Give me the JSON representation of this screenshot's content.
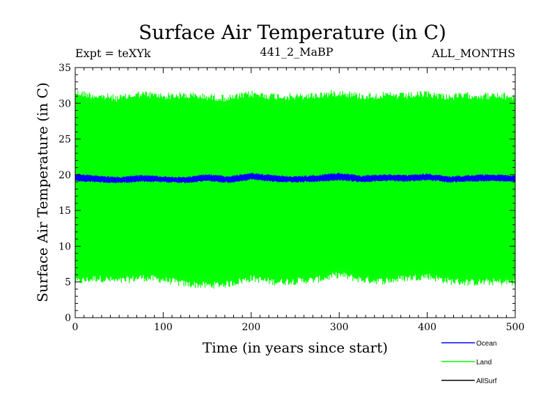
{
  "chart_data": {
    "type": "line",
    "title": "Surface Air Temperature (in C)",
    "subtitle_left": "Expt = teXYk",
    "subtitle_center": "441_2_MaBP",
    "subtitle_right": "ALL_MONTHS",
    "xlabel": "Time (in years since start)",
    "ylabel": "Surface Air Temperature (in C)",
    "xlim": [
      0,
      500
    ],
    "ylim": [
      0,
      35
    ],
    "x_ticks": [
      0,
      100,
      200,
      300,
      400,
      500
    ],
    "y_ticks": [
      0,
      5,
      10,
      15,
      20,
      25,
      30,
      35
    ],
    "legend_position": "bottom-right",
    "grid": false,
    "series": [
      {
        "name": "Ocean",
        "color": "#0000ff",
        "description": "seasonal cycle around 19.5 C",
        "x": [
          0,
          25,
          50,
          75,
          100,
          125,
          150,
          175,
          200,
          225,
          250,
          275,
          300,
          325,
          350,
          375,
          400,
          425,
          450,
          475,
          500
        ],
        "seasonal_max": [
          20.2,
          19.9,
          19.7,
          20.0,
          19.8,
          19.7,
          20.1,
          19.8,
          20.3,
          20.0,
          19.8,
          20.0,
          20.3,
          19.9,
          20.1,
          20.0,
          20.2,
          19.8,
          20.0,
          20.1,
          19.9
        ],
        "seasonal_min": [
          19.1,
          18.9,
          18.8,
          19.0,
          18.9,
          18.8,
          19.1,
          18.8,
          19.3,
          19.0,
          18.9,
          19.0,
          19.2,
          18.9,
          19.1,
          19.0,
          19.2,
          18.9,
          19.0,
          19.1,
          18.9
        ]
      },
      {
        "name": "Land",
        "color": "#00ff00",
        "description": "seasonal cycle envelope",
        "x": [
          0,
          25,
          50,
          75,
          100,
          125,
          150,
          175,
          200,
          225,
          250,
          275,
          300,
          325,
          350,
          375,
          400,
          425,
          450,
          475,
          500
        ],
        "seasonal_max": [
          32.0,
          31.5,
          31.2,
          31.8,
          31.5,
          31.6,
          31.4,
          31.2,
          31.8,
          31.5,
          31.4,
          31.6,
          32.0,
          31.5,
          31.6,
          31.5,
          31.8,
          31.4,
          31.6,
          31.5,
          31.4
        ],
        "seasonal_min": [
          4.5,
          5.0,
          4.6,
          5.1,
          4.8,
          4.2,
          4.0,
          4.2,
          5.0,
          4.5,
          4.6,
          4.8,
          5.5,
          4.8,
          4.6,
          5.0,
          5.3,
          4.6,
          4.4,
          4.5,
          4.4
        ]
      },
      {
        "name": "AllSurf",
        "color": "#000000",
        "description": "",
        "x": [],
        "seasonal_max": [],
        "seasonal_min": []
      }
    ]
  }
}
